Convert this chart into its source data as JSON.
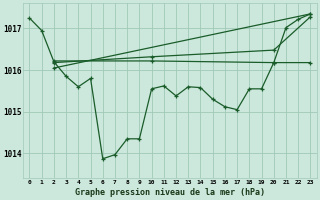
{
  "background_color": "#cce8dc",
  "grid_color": "#a0c8b8",
  "line_color": "#1a5c2a",
  "title": "Graphe pression niveau de la mer (hPa)",
  "ylim": [
    1013.4,
    1017.6
  ],
  "yticks": [
    1014,
    1015,
    1016,
    1017
  ],
  "xlim": [
    -0.5,
    23.5
  ],
  "xticks": [
    0,
    1,
    2,
    3,
    4,
    5,
    6,
    7,
    8,
    9,
    10,
    11,
    12,
    13,
    14,
    15,
    16,
    17,
    18,
    19,
    20,
    21,
    22,
    23
  ],
  "series1_x": [
    0,
    1,
    2,
    3,
    4,
    5,
    6,
    7,
    8,
    9,
    10,
    11,
    12,
    13,
    14,
    15,
    16,
    17,
    18,
    19,
    20,
    21,
    22,
    23
  ],
  "series1_y": [
    1017.25,
    1016.95,
    1016.2,
    1015.85,
    1015.6,
    1015.8,
    1013.87,
    1013.97,
    1014.35,
    1014.35,
    1015.55,
    1015.62,
    1015.38,
    1015.6,
    1015.58,
    1015.3,
    1015.12,
    1015.05,
    1015.55,
    1015.55,
    1016.18,
    1017.02,
    1017.22,
    1017.35
  ],
  "series2_x": [
    2,
    10,
    20,
    23
  ],
  "series2_y": [
    1016.22,
    1016.22,
    1016.18,
    1016.18
  ],
  "series3_x": [
    2,
    10,
    20,
    23
  ],
  "series3_y": [
    1016.18,
    1016.32,
    1016.48,
    1017.28
  ],
  "series4_x": [
    2,
    23
  ],
  "series4_y": [
    1016.05,
    1017.35
  ]
}
